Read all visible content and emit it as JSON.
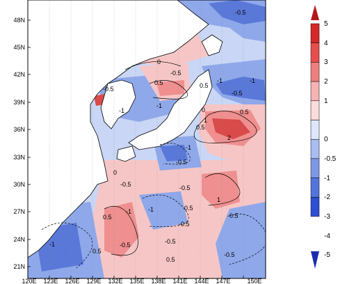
{
  "map": {
    "lat_labels": [
      "48N",
      "45N",
      "42N",
      "39N",
      "36N",
      "33N",
      "30N",
      "27N",
      "24N",
      "21N"
    ],
    "lon_labels": [
      "120E",
      "123E",
      "126E",
      "129E",
      "132E",
      "135E",
      "138E",
      "141E",
      "144E",
      "147E",
      "150E"
    ],
    "contour_labels": [
      "-0.5",
      "0",
      "-0.5",
      "0.5",
      "-0.5",
      "-1",
      "0.5",
      "0",
      "-1",
      "-1",
      "-0.5",
      "0.5",
      "0.5",
      "2",
      "1",
      "-1",
      "-0.5",
      "-1",
      "-0.5",
      "-0.5",
      "-0.5",
      "1",
      "-0.5",
      "-1",
      "0.5",
      "0.5",
      "-1",
      "0.5",
      "-0.5",
      "-0.5",
      "-0.5",
      "0.5",
      "0",
      "-1"
    ],
    "colors": {
      "land": "#ffffff",
      "light_blue": "#c9d6f5",
      "mid_blue": "#8ea8ea",
      "dark_blue": "#5a78d8",
      "light_red": "#f6c6c6",
      "mid_red": "#ef8f8f",
      "dark_red": "#d94a4a"
    }
  },
  "colorbar": {
    "labels": [
      "5",
      "4",
      "3",
      "2",
      "1",
      "0",
      "-0.5",
      "-1",
      "-2",
      "-3",
      "-4",
      "-5"
    ],
    "colors": [
      "#b31818",
      "#d62828",
      "#e84d4d",
      "#f07e7e",
      "#f6b3b3",
      "#fbdcdc",
      "#dfe6fb",
      "#a9bdf0",
      "#7d98e6",
      "#5474dc",
      "#2e4fd2",
      "#1a2fae"
    ]
  }
}
